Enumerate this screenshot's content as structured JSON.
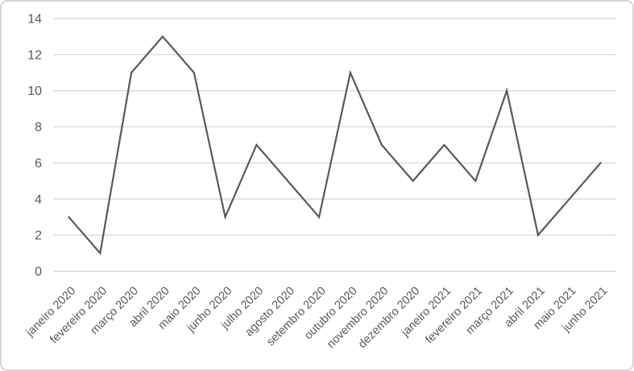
{
  "chart_data": {
    "type": "line",
    "title": "",
    "xlabel": "",
    "ylabel": "",
    "categories": [
      "janeiro 2020",
      "fevereiro 2020",
      "março 2020",
      "abril 2020",
      "maio 2020",
      "junho 2020",
      "julho 2020",
      "agosto 2020",
      "setembro 2020",
      "outubro 2020",
      "novembro 2020",
      "dezembro 2020",
      "janeiro 2021",
      "fevereiro 2021",
      "março 2021",
      "abril 2021",
      "maio 2021",
      "junho 2021"
    ],
    "values": [
      3,
      1,
      11,
      13,
      11,
      3,
      7,
      5,
      3,
      11,
      7,
      5,
      7,
      5,
      10,
      2,
      4,
      6
    ],
    "ylim": [
      0,
      14
    ],
    "ytick_interval": 2,
    "ytick_labels": [
      "0",
      "2",
      "4",
      "6",
      "8",
      "10",
      "12",
      "14"
    ],
    "grid": true,
    "legend": "none",
    "x_label_rotation_deg": 45,
    "colors": {
      "series_line": "#595959",
      "gridline": "#d9d9d9",
      "axis_text": "#595959",
      "background": "#ffffff",
      "frame_border": "#d6d6d6"
    }
  }
}
